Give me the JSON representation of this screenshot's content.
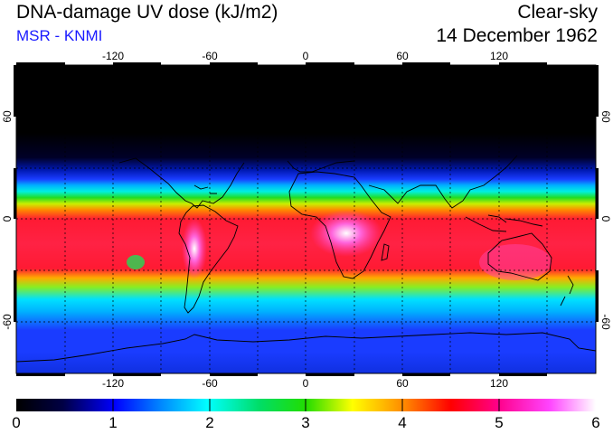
{
  "header": {
    "title": "DNA-damage UV dose (kJ/m2)",
    "subtitle": "MSR - KNMI",
    "sky_condition": "Clear-sky",
    "date": "14 December 1962"
  },
  "map": {
    "lon_ticks": [
      "-120",
      "-60",
      "0",
      "60",
      "120"
    ],
    "lat_ticks": [
      "60",
      "0",
      "-60"
    ],
    "lat_range": [
      -90,
      90
    ],
    "lon_range": [
      -180,
      180
    ],
    "colors": {
      "dark": "#000000",
      "blue": "#1a3cff",
      "cyan": "#00e8ff",
      "green": "#22dd22",
      "red": "#ff1a33",
      "magenta": "#ff33aa",
      "white": "#ffffff",
      "coast": "#000000",
      "grid": "#000000"
    }
  },
  "colorbar": {
    "labels": [
      "0",
      "1",
      "2",
      "3",
      "4",
      "5",
      "6"
    ],
    "min": 0,
    "max": 6
  }
}
